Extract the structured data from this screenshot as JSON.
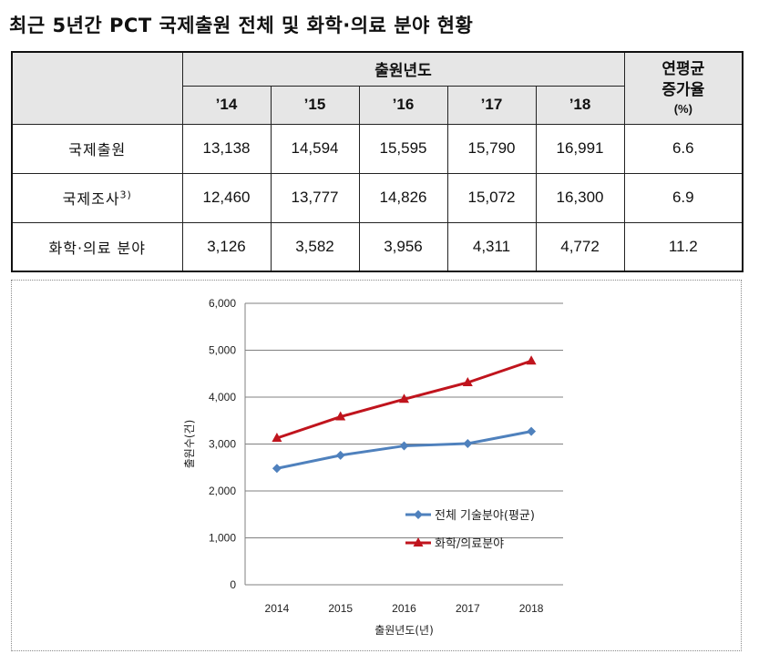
{
  "title": "최근 5년간 PCT 국제출원 전체 및 화학·의료 분야 현황",
  "table": {
    "corner": "",
    "year_group_header": "출원년도",
    "growth_header_line1": "연평균",
    "growth_header_line2": "증가율",
    "growth_header_unit": "(%)",
    "years": [
      "’14",
      "’15",
      "’16",
      "’17",
      "’18"
    ],
    "rows": [
      {
        "label": "국제출원",
        "sup": "",
        "values": [
          "13,138",
          "14,594",
          "15,595",
          "15,790",
          "16,991"
        ],
        "growth": "6.6"
      },
      {
        "label": "국제조사",
        "sup": "3)",
        "values": [
          "12,460",
          "13,777",
          "14,826",
          "15,072",
          "16,300"
        ],
        "growth": "6.9"
      },
      {
        "label": "화학·의료 분야",
        "sup": "",
        "values": [
          "3,126",
          "3,582",
          "3,956",
          "4,311",
          "4,772"
        ],
        "growth": "11.2"
      }
    ]
  },
  "chart_data": {
    "type": "line",
    "title": "",
    "xlabel": "출원년도(년)",
    "ylabel": "출원수(건)",
    "categories": [
      "2014",
      "2015",
      "2016",
      "2017",
      "2018"
    ],
    "yticks": [
      "0",
      "1,000",
      "2,000",
      "3,000",
      "4,000",
      "5,000",
      "6,000"
    ],
    "ylim": [
      0,
      6000
    ],
    "grid": true,
    "legend_position": "center-right",
    "series": [
      {
        "name": "전체 기술분야(평균)",
        "color": "#4f81bd",
        "marker": "diamond",
        "values": [
          2480,
          2760,
          2960,
          3010,
          3270
        ]
      },
      {
        "name": "화학/의료분야",
        "color": "#c0141d",
        "marker": "triangle",
        "values": [
          3126,
          3582,
          3956,
          4311,
          4772
        ]
      }
    ]
  }
}
